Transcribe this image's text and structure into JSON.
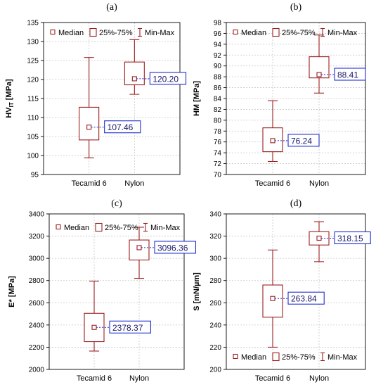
{
  "colors": {
    "box": "#9b2020",
    "annotation_border": "#1f2fcf",
    "annotation_text": "#1a1a6e",
    "connector": "#2a2ad0",
    "grid": "#c8c8c8"
  },
  "legend_labels": {
    "median": "Median",
    "iqr": "25%-75%",
    "range": "Min-Max"
  },
  "chart_data": [
    {
      "type": "box",
      "panel_label": "(a)",
      "ylabel": "HV_IT [MPa]",
      "ylabel_main": "HV",
      "ylabel_sub": "IT",
      "ylabel_unit": " [MPa]",
      "ylim": [
        95,
        135
      ],
      "yticks": [
        95,
        100,
        105,
        110,
        115,
        120,
        125,
        130,
        135
      ],
      "yticklabels": [
        "95",
        "100",
        "105",
        "110",
        "115",
        "120",
        "125",
        "130",
        "135"
      ],
      "categories": [
        "Tecamid 6",
        "Nylon"
      ],
      "legend_position": "top",
      "series": [
        {
          "category": "Tecamid 6",
          "min": 99.4,
          "q1": 104.1,
          "median": 107.46,
          "q3": 112.7,
          "max": 125.8,
          "label": "107.46"
        },
        {
          "category": "Nylon",
          "min": 116.1,
          "q1": 118.6,
          "median": 120.2,
          "q3": 124.6,
          "max": 130.5,
          "label": "120.20"
        }
      ]
    },
    {
      "type": "box",
      "panel_label": "(b)",
      "ylabel": "HM [MPa]",
      "ylabel_main": "HM [MPa]",
      "ylabel_sub": "",
      "ylabel_unit": "",
      "ylim": [
        70,
        98
      ],
      "yticks": [
        70,
        72,
        74,
        76,
        78,
        80,
        82,
        84,
        86,
        88,
        90,
        92,
        94,
        96,
        98
      ],
      "yticklabels": [
        "70",
        "72",
        "74",
        "76",
        "78",
        "80",
        "82",
        "84",
        "86",
        "88",
        "90",
        "92",
        "94",
        "96",
        "98"
      ],
      "categories": [
        "Tecamid 6",
        "Nylon"
      ],
      "legend_position": "top",
      "series": [
        {
          "category": "Tecamid 6",
          "min": 72.4,
          "q1": 74.2,
          "median": 76.24,
          "q3": 78.6,
          "max": 83.6,
          "label": "76.24"
        },
        {
          "category": "Nylon",
          "min": 85.0,
          "q1": 87.8,
          "median": 88.41,
          "q3": 91.7,
          "max": 95.7,
          "label": "88.41"
        }
      ]
    },
    {
      "type": "box",
      "panel_label": "(c)",
      "ylabel": "E* [MPa]",
      "ylabel_main": "E",
      "ylabel_sub": "",
      "ylabel_unit": "* [MPa]",
      "ylim": [
        2000,
        3400
      ],
      "yticks": [
        2000,
        2200,
        2400,
        2600,
        2800,
        3000,
        3200,
        3400
      ],
      "yticklabels": [
        "2000",
        "2200",
        "2400",
        "2600",
        "2800",
        "3000",
        "3200",
        "3400"
      ],
      "categories": [
        "Tecamid 6",
        "Nylon"
      ],
      "legend_position": "top",
      "series": [
        {
          "category": "Tecamid 6",
          "min": 2165,
          "q1": 2250,
          "median": 2378.37,
          "q3": 2505,
          "max": 2795,
          "label": "2378.37"
        },
        {
          "category": "Nylon",
          "min": 2820,
          "q1": 2985,
          "median": 3096.36,
          "q3": 3165,
          "max": 3280,
          "label": "3096.36"
        }
      ]
    },
    {
      "type": "box",
      "panel_label": "(d)",
      "ylabel": "S [mN/µm]",
      "ylabel_main": "S [mN/µm]",
      "ylabel_sub": "",
      "ylabel_unit": "",
      "ylim": [
        200,
        340
      ],
      "yticks": [
        200,
        220,
        240,
        260,
        280,
        300,
        320,
        340
      ],
      "yticklabels": [
        "200",
        "220",
        "240",
        "260",
        "280",
        "300",
        "320",
        "340"
      ],
      "categories": [
        "Tecamid 6",
        "Nylon"
      ],
      "legend_position": "bottom",
      "series": [
        {
          "category": "Tecamid 6",
          "min": 220,
          "q1": 247,
          "median": 263.84,
          "q3": 276,
          "max": 307.5,
          "label": "263.84"
        },
        {
          "category": "Nylon",
          "min": 297,
          "q1": 312,
          "median": 318.15,
          "q3": 324,
          "max": 333,
          "label": "318.15"
        }
      ]
    }
  ]
}
